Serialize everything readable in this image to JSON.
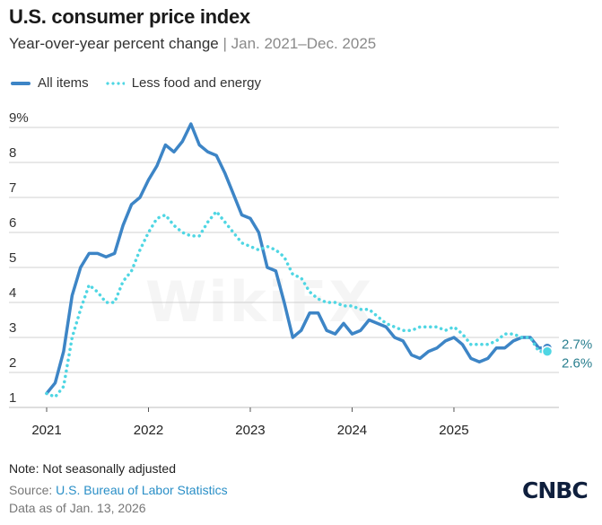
{
  "header": {
    "title": "U.S. consumer price index",
    "subtitle_main": "Year-over-year percent change",
    "subtitle_sep": " | ",
    "subtitle_range": "Jan. 2021–Dec. 2025"
  },
  "legend": {
    "all_items": "All items",
    "core": "Less food and energy"
  },
  "colors": {
    "all_items": "#3d85c6",
    "core": "#4fd6e3",
    "grid": "#d0d0d0",
    "end_label": "#2a7f8f"
  },
  "footer": {
    "note": "Note: Not seasonally adjusted",
    "source_prefix": "Source: ",
    "source_link": "U.S. Bureau of Labor Statistics",
    "as_of": "Data as of Jan. 13, 2026"
  },
  "logo_text": "CNBC",
  "watermark_text": "WikiFX",
  "chart_data": {
    "type": "line",
    "title": "U.S. consumer price index",
    "subtitle": "Year-over-year percent change | Jan. 2021–Dec. 2025",
    "xlabel": "",
    "ylabel": "",
    "ylim": [
      1,
      9
    ],
    "yticks": [
      1,
      2,
      3,
      4,
      5,
      6,
      7,
      8,
      9
    ],
    "ytick_labels": [
      "1",
      "2",
      "3",
      "4",
      "5",
      "6",
      "7",
      "8",
      "9%"
    ],
    "xticks": [
      "2021",
      "2022",
      "2023",
      "2024",
      "2025"
    ],
    "grid": true,
    "legend_position": "top-left",
    "end_labels": [
      "2.7%",
      "2.6%"
    ],
    "series": [
      {
        "name": "All items",
        "style": "solid",
        "values": [
          1.4,
          1.7,
          2.6,
          4.2,
          5.0,
          5.4,
          5.4,
          5.3,
          5.4,
          6.2,
          6.8,
          7.0,
          7.5,
          7.9,
          8.5,
          8.3,
          8.6,
          9.1,
          8.5,
          8.3,
          8.2,
          7.7,
          7.1,
          6.5,
          6.4,
          6.0,
          5.0,
          4.9,
          4.0,
          3.0,
          3.2,
          3.7,
          3.7,
          3.2,
          3.1,
          3.4,
          3.1,
          3.2,
          3.5,
          3.4,
          3.3,
          3.0,
          2.9,
          2.5,
          2.4,
          2.6,
          2.7,
          2.9,
          3.0,
          2.8,
          2.4,
          2.3,
          2.4,
          2.7,
          2.7,
          2.9,
          3.0,
          3.0,
          2.7,
          2.7
        ]
      },
      {
        "name": "Less food and energy",
        "style": "dotted",
        "values": [
          1.4,
          1.3,
          1.6,
          3.0,
          3.8,
          4.5,
          4.3,
          4.0,
          4.0,
          4.6,
          4.9,
          5.5,
          6.0,
          6.4,
          6.5,
          6.2,
          6.0,
          5.9,
          5.9,
          6.3,
          6.6,
          6.3,
          6.0,
          5.7,
          5.6,
          5.5,
          5.6,
          5.5,
          5.3,
          4.8,
          4.7,
          4.3,
          4.1,
          4.0,
          4.0,
          3.9,
          3.9,
          3.8,
          3.8,
          3.6,
          3.4,
          3.3,
          3.2,
          3.2,
          3.3,
          3.3,
          3.3,
          3.2,
          3.3,
          3.1,
          2.8,
          2.8,
          2.8,
          2.9,
          3.1,
          3.1,
          3.0,
          3.0,
          2.6,
          2.6
        ]
      }
    ]
  }
}
